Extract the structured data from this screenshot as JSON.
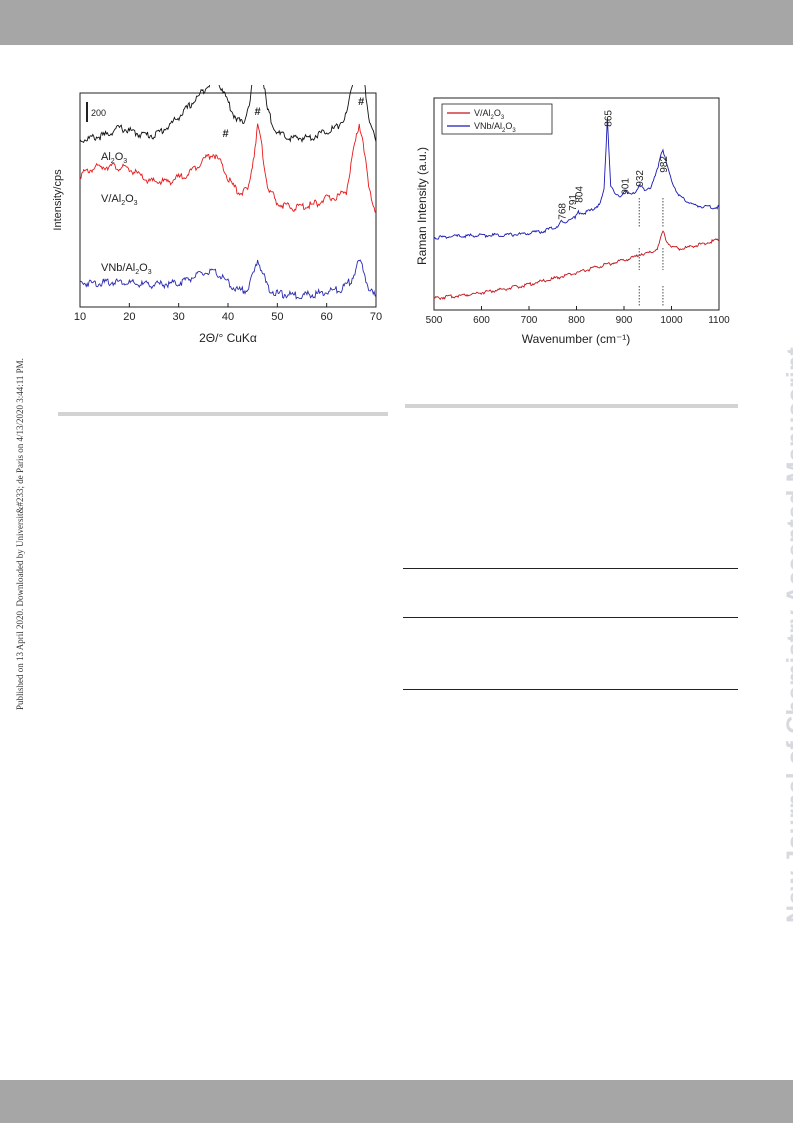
{
  "page": {
    "sidebar_note": "Published on 13 April 2020. Downloaded by Universit&#233; de Paris on 4/13/2020 3:44:11 PM.",
    "watermark": "New Journal of Chemistry Accepted Manuscript"
  },
  "chart_data": [
    {
      "type": "line",
      "xlabel": "2Θ/° CuKα",
      "ylabel": "Intensity/cps",
      "xlim": [
        10,
        70
      ],
      "x_ticks": [
        10,
        20,
        30,
        40,
        50,
        60,
        70
      ],
      "scale_bar": "200",
      "peak_marker": "#",
      "peak_markers_x": [
        39.5,
        46,
        67
      ],
      "series": [
        {
          "name": "Al2O3",
          "label_main": "Al",
          "label_sub1": "2",
          "label_mid": "O",
          "label_sub2": "3",
          "color": "#111111",
          "offset": 195,
          "points": [
            [
              10,
              6
            ],
            [
              15,
              12
            ],
            [
              18,
              22
            ],
            [
              22,
              14
            ],
            [
              25,
              12
            ],
            [
              28,
              24
            ],
            [
              31,
              42
            ],
            [
              34,
              62
            ],
            [
              36,
              78
            ],
            [
              37.5,
              86
            ],
            [
              39,
              70
            ],
            [
              41,
              40
            ],
            [
              43,
              26
            ],
            [
              44.5,
              58
            ],
            [
              45.5,
              108
            ],
            [
              46,
              118
            ],
            [
              46.8,
              98
            ],
            [
              48,
              44
            ],
            [
              50,
              14
            ],
            [
              53,
              8
            ],
            [
              57,
              10
            ],
            [
              60,
              18
            ],
            [
              62,
              22
            ],
            [
              64,
              38
            ],
            [
              65.5,
              88
            ],
            [
              66.5,
              118
            ],
            [
              67.3,
              100
            ],
            [
              68.5,
              36
            ],
            [
              70,
              4
            ]
          ]
        },
        {
          "name": "V/Al2O3",
          "label_main": "V/Al",
          "label_sub1": "2",
          "label_mid": "O",
          "label_sub2": "3",
          "color": "#e8191b",
          "offset": 108,
          "points": [
            [
              10,
              48
            ],
            [
              13,
              58
            ],
            [
              16,
              60
            ],
            [
              20,
              56
            ],
            [
              24,
              40
            ],
            [
              28,
              40
            ],
            [
              32,
              50
            ],
            [
              35,
              68
            ],
            [
              37,
              76
            ],
            [
              38.5,
              64
            ],
            [
              40,
              44
            ],
            [
              42,
              26
            ],
            [
              44,
              28
            ],
            [
              45.3,
              76
            ],
            [
              46,
              112
            ],
            [
              46.7,
              90
            ],
            [
              48,
              34
            ],
            [
              50,
              12
            ],
            [
              53,
              6
            ],
            [
              57,
              10
            ],
            [
              60,
              18
            ],
            [
              62,
              20
            ],
            [
              64,
              28
            ],
            [
              65.5,
              80
            ],
            [
              66.6,
              114
            ],
            [
              67.4,
              92
            ],
            [
              68.5,
              32
            ],
            [
              70,
              0
            ]
          ]
        },
        {
          "name": "VNb/Al2O3",
          "label_main": "VNb/Al",
          "label_sub1": "2",
          "label_mid": "O",
          "label_sub2": "3",
          "color": "#2b2bb0",
          "offset": 0,
          "points": [
            [
              10,
              18
            ],
            [
              14,
              18
            ],
            [
              18,
              20
            ],
            [
              22,
              16
            ],
            [
              26,
              16
            ],
            [
              30,
              18
            ],
            [
              33,
              26
            ],
            [
              36,
              32
            ],
            [
              38,
              30
            ],
            [
              40,
              18
            ],
            [
              42,
              8
            ],
            [
              44,
              10
            ],
            [
              45.3,
              32
            ],
            [
              46,
              48
            ],
            [
              46.8,
              36
            ],
            [
              48,
              12
            ],
            [
              50,
              4
            ],
            [
              54,
              2
            ],
            [
              58,
              4
            ],
            [
              61,
              8
            ],
            [
              63,
              10
            ],
            [
              65,
              22
            ],
            [
              66.6,
              46
            ],
            [
              67.4,
              36
            ],
            [
              68.5,
              10
            ],
            [
              70,
              0
            ]
          ]
        }
      ]
    },
    {
      "type": "line",
      "xlabel": "Wavenumber (cm⁻¹)",
      "ylabel": "Raman Intensity (a.u.)",
      "xlim": [
        500,
        1100
      ],
      "x_ticks": [
        500,
        600,
        700,
        800,
        900,
        1000,
        1100
      ],
      "legend": "top-left",
      "peak_labels": [
        "768",
        "791",
        "804",
        "865",
        "901",
        "932",
        "982"
      ],
      "reference_lines_x": [
        932,
        982
      ],
      "series": [
        {
          "name": "V/Al2O3",
          "legend_main": "V/Al",
          "legend_sub1": "2",
          "legend_mid": "O",
          "legend_sub2": "3",
          "color": "#c0141a",
          "offset": 0,
          "points": [
            [
              500,
              2
            ],
            [
              560,
              6
            ],
            [
              620,
              11
            ],
            [
              680,
              17
            ],
            [
              740,
              25
            ],
            [
              800,
              34
            ],
            [
              860,
              44
            ],
            [
              900,
              50
            ],
            [
              925,
              54
            ],
            [
              935,
              58
            ],
            [
              945,
              58
            ],
            [
              960,
              60
            ],
            [
              972,
              66
            ],
            [
              978,
              78
            ],
            [
              982,
              86
            ],
            [
              988,
              76
            ],
            [
              1000,
              66
            ],
            [
              1020,
              64
            ],
            [
              1050,
              68
            ],
            [
              1080,
              72
            ],
            [
              1100,
              76
            ]
          ]
        },
        {
          "name": "VNb/Al2O3",
          "legend_main": "VNb/Al",
          "legend_sub1": "2",
          "legend_mid": "O",
          "legend_sub2": "3",
          "color": "#1a1ab4",
          "offset": 78,
          "points": [
            [
              500,
              0
            ],
            [
              560,
              2
            ],
            [
              620,
              3
            ],
            [
              680,
              4
            ],
            [
              730,
              8
            ],
            [
              760,
              14
            ],
            [
              768,
              20
            ],
            [
              775,
              18
            ],
            [
              791,
              26
            ],
            [
              797,
              24
            ],
            [
              804,
              32
            ],
            [
              815,
              30
            ],
            [
              830,
              34
            ],
            [
              850,
              42
            ],
            [
              858,
              60
            ],
            [
              862,
              110
            ],
            [
              865,
              150
            ],
            [
              868,
              112
            ],
            [
              872,
              66
            ],
            [
              880,
              54
            ],
            [
              892,
              52
            ],
            [
              901,
              58
            ],
            [
              910,
              54
            ],
            [
              925,
              58
            ],
            [
              932,
              64
            ],
            [
              945,
              60
            ],
            [
              958,
              64
            ],
            [
              970,
              84
            ],
            [
              977,
              104
            ],
            [
              982,
              110
            ],
            [
              988,
              96
            ],
            [
              1000,
              72
            ],
            [
              1015,
              52
            ],
            [
              1030,
              46
            ],
            [
              1050,
              40
            ],
            [
              1075,
              38
            ],
            [
              1100,
              38
            ]
          ]
        }
      ]
    }
  ]
}
